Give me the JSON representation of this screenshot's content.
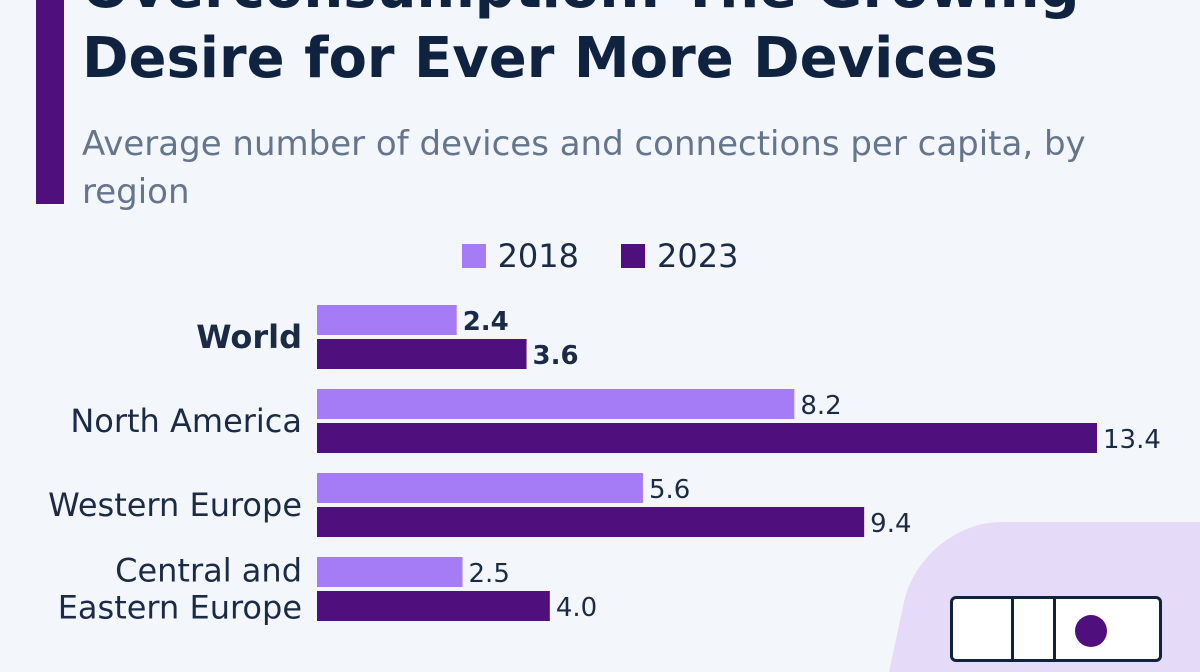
{
  "header": {
    "title": "Overconsumption: The Growing\nDesire for Ever More Devices",
    "subtitle": "Average number of devices and connections per capita, by region"
  },
  "colors": {
    "accent": "#4f0f7d",
    "series_2018": "#a57cf5",
    "series_2023": "#4f0f7d",
    "title": "#0f2340",
    "subtitle": "#65758c"
  },
  "chart_data": {
    "type": "bar",
    "orientation": "horizontal",
    "title": "Overconsumption: The Growing Desire for Ever More Devices",
    "subtitle": "Average number of devices and connections per capita, by region",
    "categories": [
      "World",
      "North America",
      "Western Europe",
      "Central and\nEastern Europe"
    ],
    "series": [
      {
        "name": "2018",
        "color": "#a57cf5",
        "values": [
          2.4,
          8.2,
          5.6,
          2.5
        ],
        "labels": [
          "2.4",
          "8.2",
          "5.6",
          "2.5"
        ]
      },
      {
        "name": "2023",
        "color": "#4f0f7d",
        "values": [
          3.6,
          13.4,
          9.4,
          4.0
        ],
        "labels": [
          "3.6",
          "13.4",
          "9.4",
          "4.0"
        ]
      }
    ],
    "highlight_category": "World",
    "legend_position": "top-center",
    "grid": false,
    "xlim": [
      0,
      13.4
    ]
  }
}
